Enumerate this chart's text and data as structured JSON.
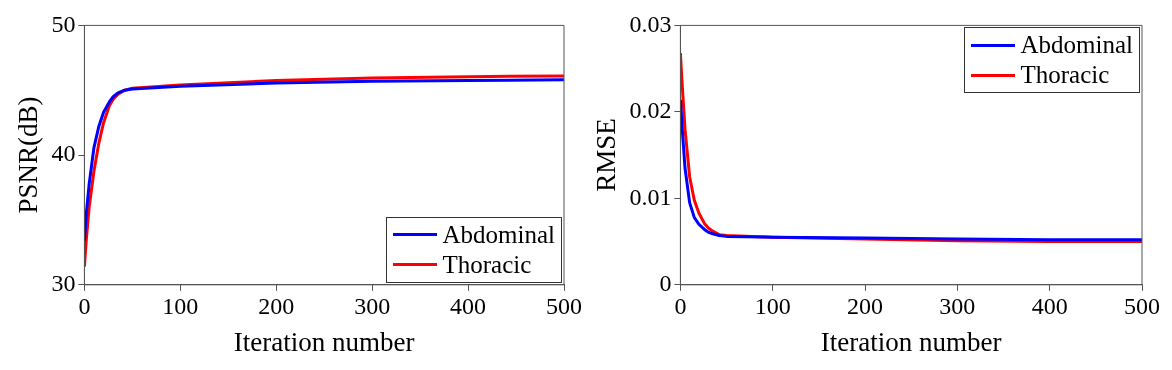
{
  "chart_data": [
    {
      "type": "line",
      "xlabel": "Iteration number",
      "ylabel": "PSNR(dB)",
      "xlim": [
        0,
        500
      ],
      "xticks": [
        0,
        100,
        200,
        300,
        400,
        500
      ],
      "ylim": [
        30,
        50
      ],
      "yticks": [
        30,
        40,
        50
      ],
      "legend": "bottom right",
      "grid": false,
      "series": [
        {
          "name": "Abdominal",
          "color": "#0000ff",
          "x": [
            0,
            2,
            5,
            10,
            15,
            20,
            26,
            30,
            35,
            42,
            50,
            100,
            200,
            300,
            400,
            500
          ],
          "values": [
            33.4,
            35.5,
            37.8,
            40.6,
            42.2,
            43.3,
            44.1,
            44.5,
            44.8,
            45.0,
            45.1,
            45.3,
            45.55,
            45.7,
            45.75,
            45.8
          ]
        },
        {
          "name": "Thoracic",
          "color": "#ff0000",
          "x": [
            0,
            2,
            5,
            10,
            15,
            20,
            26,
            30,
            35,
            42,
            50,
            100,
            200,
            300,
            400,
            500
          ],
          "values": [
            31.4,
            33.5,
            36.0,
            38.8,
            40.9,
            42.5,
            43.8,
            44.3,
            44.7,
            45.0,
            45.15,
            45.4,
            45.75,
            45.95,
            46.05,
            46.1
          ]
        }
      ]
    },
    {
      "type": "line",
      "xlabel": "Iteration number",
      "ylabel": "RMSE",
      "xlim": [
        0,
        500
      ],
      "xticks": [
        0,
        100,
        200,
        300,
        400,
        500
      ],
      "ylim": [
        0,
        0.03
      ],
      "yticks": [
        0,
        0.01,
        0.02,
        0.03
      ],
      "legend": "top right",
      "grid": false,
      "series": [
        {
          "name": "Abdominal",
          "color": "#0000ff",
          "x": [
            0,
            2,
            5,
            10,
            15,
            20,
            26,
            30,
            35,
            42,
            50,
            100,
            200,
            300,
            400,
            500
          ],
          "values": [
            0.0214,
            0.018,
            0.0135,
            0.0095,
            0.0078,
            0.007,
            0.0064,
            0.0061,
            0.0059,
            0.0057,
            0.0056,
            0.0055,
            0.0054,
            0.0053,
            0.0052,
            0.0052
          ]
        },
        {
          "name": "Thoracic",
          "color": "#ff0000",
          "x": [
            0,
            2,
            5,
            10,
            15,
            20,
            26,
            30,
            35,
            42,
            50,
            100,
            200,
            300,
            400,
            500
          ],
          "values": [
            0.0268,
            0.023,
            0.018,
            0.0125,
            0.0098,
            0.0083,
            0.0071,
            0.0066,
            0.0062,
            0.0058,
            0.0057,
            0.0055,
            0.0053,
            0.0051,
            0.005,
            0.005
          ]
        }
      ]
    }
  ]
}
